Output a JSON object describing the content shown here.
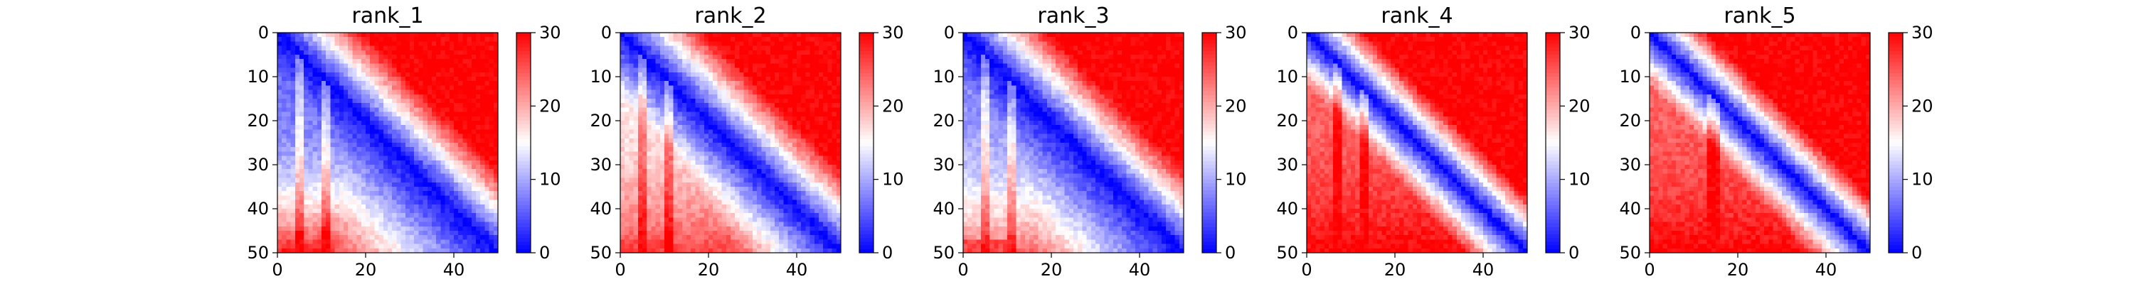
{
  "chart_data": [
    {
      "type": "heatmap",
      "title": "rank_1",
      "matrix_size": 50,
      "x_ticks": [
        0,
        20,
        40
      ],
      "y_ticks": [
        0,
        10,
        20,
        30,
        40,
        50
      ],
      "xlim": [
        0,
        50
      ],
      "ylim": [
        50,
        0
      ],
      "colorbar": {
        "min": 0,
        "max": 30,
        "ticks": [
          0,
          10,
          20,
          30
        ],
        "colormap": "bwr"
      },
      "pattern": {
        "near_diagonal_min": 0,
        "upper_right_max": 30,
        "lower_left_near_corner": 6,
        "lower_left_bottom_row": 28,
        "strip_columns": [
          4,
          5,
          10,
          11
        ],
        "description_key": "cooled_lower_triangle"
      }
    },
    {
      "type": "heatmap",
      "title": "rank_2",
      "matrix_size": 50,
      "x_ticks": [
        0,
        20,
        40
      ],
      "y_ticks": [
        0,
        10,
        20,
        30,
        40,
        50
      ],
      "xlim": [
        0,
        50
      ],
      "ylim": [
        50,
        0
      ],
      "colorbar": {
        "min": 0,
        "max": 30,
        "ticks": [
          0,
          10,
          20,
          30
        ],
        "colormap": "bwr"
      },
      "pattern": {
        "near_diagonal_min": 0,
        "upper_right_max": 30,
        "lower_left_near_corner": 16,
        "lower_left_bottom_row": 26,
        "strip_columns": [
          4,
          5,
          10,
          11
        ],
        "description_key": "symmetric_gradient"
      }
    },
    {
      "type": "heatmap",
      "title": "rank_3",
      "matrix_size": 50,
      "x_ticks": [
        0,
        20,
        40
      ],
      "y_ticks": [
        0,
        10,
        20,
        30,
        40,
        50
      ],
      "xlim": [
        0,
        50
      ],
      "ylim": [
        50,
        0
      ],
      "colorbar": {
        "min": 0,
        "max": 30,
        "ticks": [
          0,
          10,
          20,
          30
        ],
        "colormap": "bwr"
      },
      "pattern": {
        "near_diagonal_min": 0,
        "upper_right_max": 30,
        "lower_left_near_corner": 8,
        "lower_left_bottom_row": 24,
        "strip_columns": [
          4,
          5,
          10,
          11
        ],
        "description_key": "cooled_lower_triangle"
      }
    },
    {
      "type": "heatmap",
      "title": "rank_4",
      "matrix_size": 50,
      "x_ticks": [
        0,
        20,
        40
      ],
      "y_ticks": [
        0,
        10,
        20,
        30,
        40,
        50
      ],
      "xlim": [
        0,
        50
      ],
      "ylim": [
        50,
        0
      ],
      "colorbar": {
        "min": 0,
        "max": 30,
        "ticks": [
          0,
          10,
          20,
          30
        ],
        "colormap": "bwr"
      },
      "pattern": {
        "near_diagonal_min": 0,
        "upper_right_max": 30,
        "lower_left_near_corner": 24,
        "lower_left_bottom_row": 30,
        "strip_columns": [
          6,
          7,
          12,
          13
        ],
        "description_key": "narrow_diagonal"
      }
    },
    {
      "type": "heatmap",
      "title": "rank_5",
      "matrix_size": 50,
      "x_ticks": [
        0,
        20,
        40
      ],
      "y_ticks": [
        0,
        10,
        20,
        30,
        40,
        50
      ],
      "xlim": [
        0,
        50
      ],
      "ylim": [
        50,
        0
      ],
      "colorbar": {
        "min": 0,
        "max": 30,
        "ticks": [
          0,
          10,
          20,
          30
        ],
        "colormap": "bwr"
      },
      "pattern": {
        "near_diagonal_min": 0,
        "upper_right_max": 30,
        "lower_left_near_corner": 24,
        "lower_left_bottom_row": 30,
        "strip_columns": [
          13,
          14,
          15
        ],
        "description_key": "narrow_diagonal"
      }
    }
  ]
}
